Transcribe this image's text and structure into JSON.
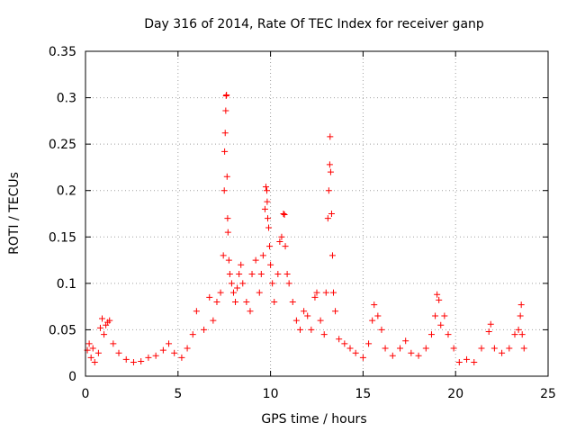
{
  "chart_data": {
    "type": "scatter",
    "title": "Day 316 of 2014, Rate Of TEC Index for receiver ganp",
    "xlabel": "GPS time / hours",
    "ylabel": "ROTI / TECUs",
    "xlim": [
      0,
      25
    ],
    "ylim": [
      0,
      0.35
    ],
    "xticks": [
      0,
      5,
      10,
      15,
      20,
      25
    ],
    "yticks": [
      0,
      0.05,
      0.1,
      0.15,
      0.2,
      0.25,
      0.3,
      0.35
    ],
    "xtick_labels": [
      "0",
      "5",
      "10",
      "15",
      "20",
      "25"
    ],
    "ytick_labels": [
      "0",
      "0.05",
      "0.1",
      "0.15",
      "0.2",
      "0.25",
      "0.3",
      "0.35"
    ],
    "grid": true,
    "marker": "+",
    "color": "#ff0000",
    "series": [
      {
        "name": "ROTI",
        "points": [
          [
            0.1,
            0.028
          ],
          [
            0.2,
            0.035
          ],
          [
            0.3,
            0.02
          ],
          [
            0.4,
            0.03
          ],
          [
            0.5,
            0.015
          ],
          [
            0.7,
            0.025
          ],
          [
            0.8,
            0.052
          ],
          [
            0.9,
            0.062
          ],
          [
            1.0,
            0.045
          ],
          [
            1.1,
            0.055
          ],
          [
            1.2,
            0.058
          ],
          [
            1.3,
            0.06
          ],
          [
            1.5,
            0.035
          ],
          [
            1.8,
            0.025
          ],
          [
            2.2,
            0.018
          ],
          [
            2.6,
            0.015
          ],
          [
            3.0,
            0.016
          ],
          [
            3.4,
            0.02
          ],
          [
            3.8,
            0.022
          ],
          [
            4.2,
            0.028
          ],
          [
            4.5,
            0.035
          ],
          [
            4.8,
            0.025
          ],
          [
            5.2,
            0.02
          ],
          [
            5.5,
            0.03
          ],
          [
            5.8,
            0.045
          ],
          [
            6.0,
            0.07
          ],
          [
            6.4,
            0.05
          ],
          [
            6.7,
            0.085
          ],
          [
            6.9,
            0.06
          ],
          [
            7.1,
            0.08
          ],
          [
            7.3,
            0.09
          ],
          [
            7.45,
            0.13
          ],
          [
            7.5,
            0.2
          ],
          [
            7.52,
            0.242
          ],
          [
            7.55,
            0.262
          ],
          [
            7.58,
            0.286
          ],
          [
            7.6,
            0.302
          ],
          [
            7.62,
            0.303
          ],
          [
            7.65,
            0.215
          ],
          [
            7.68,
            0.17
          ],
          [
            7.7,
            0.155
          ],
          [
            7.75,
            0.125
          ],
          [
            7.8,
            0.11
          ],
          [
            7.9,
            0.1
          ],
          [
            8.0,
            0.09
          ],
          [
            8.1,
            0.08
          ],
          [
            8.2,
            0.095
          ],
          [
            8.3,
            0.11
          ],
          [
            8.4,
            0.12
          ],
          [
            8.5,
            0.1
          ],
          [
            8.7,
            0.08
          ],
          [
            8.9,
            0.07
          ],
          [
            9.0,
            0.11
          ],
          [
            9.2,
            0.125
          ],
          [
            9.4,
            0.09
          ],
          [
            9.5,
            0.11
          ],
          [
            9.6,
            0.13
          ],
          [
            9.7,
            0.18
          ],
          [
            9.75,
            0.204
          ],
          [
            9.8,
            0.2
          ],
          [
            9.82,
            0.188
          ],
          [
            9.85,
            0.17
          ],
          [
            9.9,
            0.16
          ],
          [
            9.95,
            0.14
          ],
          [
            10.0,
            0.12
          ],
          [
            10.1,
            0.1
          ],
          [
            10.2,
            0.08
          ],
          [
            10.4,
            0.11
          ],
          [
            10.5,
            0.145
          ],
          [
            10.6,
            0.15
          ],
          [
            10.7,
            0.175
          ],
          [
            10.75,
            0.174
          ],
          [
            10.8,
            0.14
          ],
          [
            10.9,
            0.11
          ],
          [
            11.0,
            0.1
          ],
          [
            11.2,
            0.08
          ],
          [
            11.4,
            0.06
          ],
          [
            11.6,
            0.05
          ],
          [
            11.8,
            0.07
          ],
          [
            12.0,
            0.065
          ],
          [
            12.2,
            0.05
          ],
          [
            12.4,
            0.085
          ],
          [
            12.5,
            0.09
          ],
          [
            12.7,
            0.06
          ],
          [
            12.9,
            0.045
          ],
          [
            13.0,
            0.09
          ],
          [
            13.1,
            0.17
          ],
          [
            13.15,
            0.2
          ],
          [
            13.2,
            0.228
          ],
          [
            13.22,
            0.258
          ],
          [
            13.25,
            0.22
          ],
          [
            13.3,
            0.175
          ],
          [
            13.35,
            0.13
          ],
          [
            13.4,
            0.09
          ],
          [
            13.5,
            0.07
          ],
          [
            13.7,
            0.04
          ],
          [
            14.0,
            0.035
          ],
          [
            14.3,
            0.03
          ],
          [
            14.6,
            0.025
          ],
          [
            15.0,
            0.02
          ],
          [
            15.3,
            0.035
          ],
          [
            15.5,
            0.06
          ],
          [
            15.6,
            0.077
          ],
          [
            15.8,
            0.065
          ],
          [
            16.0,
            0.05
          ],
          [
            16.2,
            0.03
          ],
          [
            16.6,
            0.022
          ],
          [
            17.0,
            0.03
          ],
          [
            17.3,
            0.038
          ],
          [
            17.6,
            0.025
          ],
          [
            18.0,
            0.022
          ],
          [
            18.4,
            0.03
          ],
          [
            18.7,
            0.045
          ],
          [
            18.9,
            0.065
          ],
          [
            19.0,
            0.088
          ],
          [
            19.1,
            0.082
          ],
          [
            19.2,
            0.055
          ],
          [
            19.4,
            0.065
          ],
          [
            19.6,
            0.045
          ],
          [
            19.9,
            0.03
          ],
          [
            20.2,
            0.015
          ],
          [
            20.6,
            0.018
          ],
          [
            21.0,
            0.015
          ],
          [
            21.4,
            0.03
          ],
          [
            21.8,
            0.048
          ],
          [
            21.9,
            0.056
          ],
          [
            22.1,
            0.03
          ],
          [
            22.5,
            0.025
          ],
          [
            22.9,
            0.03
          ],
          [
            23.2,
            0.045
          ],
          [
            23.4,
            0.05
          ],
          [
            23.5,
            0.065
          ],
          [
            23.55,
            0.077
          ],
          [
            23.6,
            0.045
          ],
          [
            23.7,
            0.03
          ]
        ]
      }
    ]
  }
}
